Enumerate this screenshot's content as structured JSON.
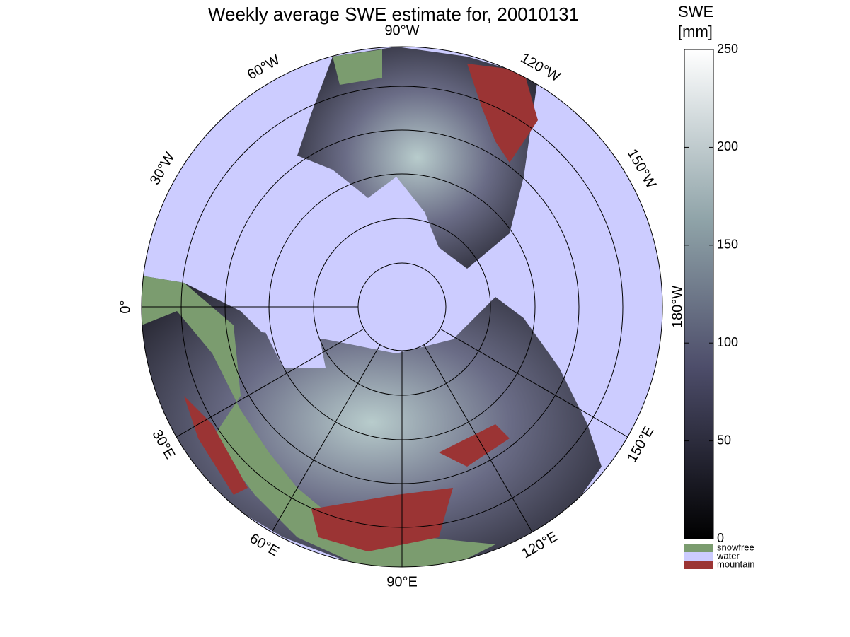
{
  "title": "Weekly average SWE estimate for, 20010131",
  "map": {
    "longitude_labels": [
      "0°",
      "30°E",
      "60°E",
      "90°E",
      "120°E",
      "150°E",
      "180°W",
      "150°W",
      "120°W",
      "90°W",
      "60°W",
      "30°W"
    ]
  },
  "colorbar": {
    "label": [
      "SWE",
      "[mm]"
    ],
    "range": [
      0,
      250
    ],
    "ticks": [
      0,
      50,
      100,
      150,
      200,
      250
    ],
    "legend": [
      {
        "name": "snowfree",
        "color": "#7b9c6f"
      },
      {
        "name": "water",
        "color": "#ccccff"
      },
      {
        "name": "mountain",
        "color": "#9b3434"
      }
    ]
  }
}
